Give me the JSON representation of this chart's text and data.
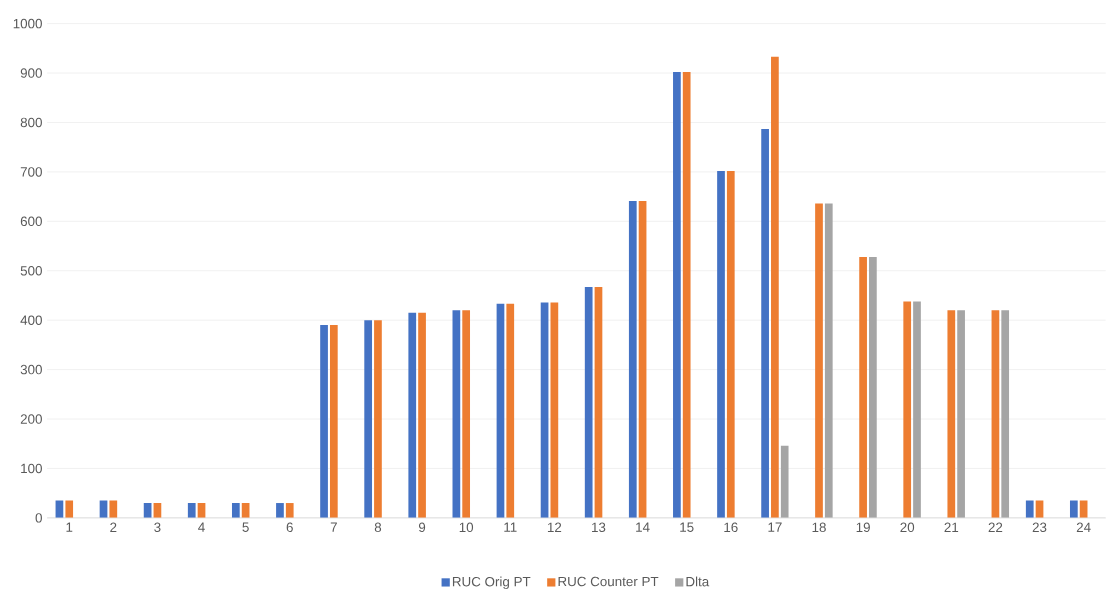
{
  "chart_data": {
    "type": "bar",
    "categories": [
      "1",
      "2",
      "3",
      "4",
      "5",
      "6",
      "7",
      "8",
      "9",
      "10",
      "11",
      "12",
      "13",
      "14",
      "15",
      "16",
      "17",
      "18",
      "19",
      "20",
      "21",
      "22",
      "23",
      "24"
    ],
    "series": [
      {
        "name": "RUC Orig PT",
        "color": "#4472c4",
        "values": [
          35,
          35,
          30,
          30,
          30,
          30,
          390,
          400,
          415,
          420,
          433,
          436,
          467,
          641,
          902,
          702,
          787,
          null,
          null,
          null,
          null,
          null,
          35,
          35
        ]
      },
      {
        "name": "RUC Counter PT",
        "color": "#ed7d31",
        "values": [
          35,
          35,
          30,
          30,
          30,
          30,
          390,
          400,
          415,
          420,
          433,
          436,
          467,
          641,
          902,
          702,
          933,
          636,
          528,
          438,
          420,
          420,
          35,
          35
        ]
      },
      {
        "name": "Dlta",
        "color": "#a5a5a5",
        "values": [
          null,
          null,
          null,
          null,
          null,
          null,
          null,
          null,
          null,
          null,
          null,
          null,
          null,
          null,
          null,
          null,
          146,
          636,
          528,
          438,
          420,
          420,
          null,
          null
        ]
      }
    ],
    "ylim": [
      0,
      1000
    ],
    "yticks": [
      0,
      100,
      200,
      300,
      400,
      500,
      600,
      700,
      800,
      900,
      1000
    ],
    "grid": "y",
    "legend": "bottom"
  }
}
